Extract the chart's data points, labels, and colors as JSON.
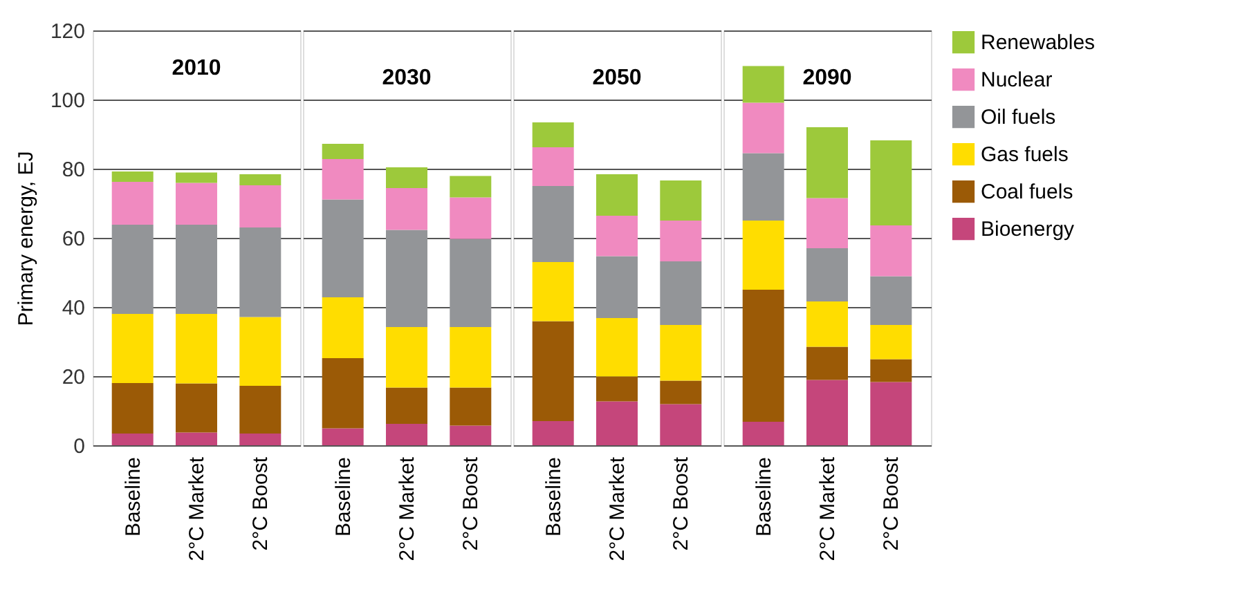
{
  "chart_data": [
    {
      "type": "bar",
      "stacked": true,
      "title": "2010",
      "ylabel": "Primary energy, EJ",
      "categories": [
        "Baseline",
        "2°C Market",
        "2°C Boost"
      ],
      "ylim": [
        0,
        120
      ],
      "yticks": [
        0,
        20,
        40,
        60,
        80,
        100,
        120
      ],
      "grid": "y",
      "legend": "right",
      "series": [
        {
          "name": "Bioenergy",
          "color": "#c5467b",
          "values": [
            3.4,
            3.7,
            3.4
          ]
        },
        {
          "name": "Coal fuels",
          "color": "#9b5a06",
          "values": [
            14.6,
            14.2,
            13.8
          ]
        },
        {
          "name": "Gas fuels",
          "color": "#ffdd00",
          "values": [
            20,
            20.1,
            19.9
          ]
        },
        {
          "name": "Oil fuels",
          "color": "#939598",
          "values": [
            25.8,
            25.8,
            25.9
          ]
        },
        {
          "name": "Nuclear",
          "color": "#f08ac0",
          "values": [
            12.4,
            12.1,
            12.2
          ]
        },
        {
          "name": "Renewables",
          "color": "#9dc93b",
          "values": [
            3.0,
            3.0,
            3.2
          ]
        }
      ]
    },
    {
      "type": "bar",
      "stacked": true,
      "title": "2030",
      "categories": [
        "Baseline",
        "2°C Market",
        "2°C Boost"
      ],
      "ylim": [
        0,
        120
      ],
      "yticks": [
        0,
        20,
        40,
        60,
        80,
        100,
        120
      ],
      "grid": "y",
      "tick_labels": "x",
      "series": [
        {
          "color": "#c5467b",
          "values": [
            4.9,
            6.2,
            5.7
          ]
        },
        {
          "color": "#9b5a06",
          "values": [
            20.3,
            10.5,
            11
          ]
        },
        {
          "color": "#ffdd00",
          "values": [
            17.6,
            17.5,
            17.5
          ]
        },
        {
          "color": "#939598",
          "values": [
            28.3,
            28.1,
            25.5
          ]
        },
        {
          "color": "#f08ac0",
          "values": [
            11.7,
            12.1,
            12
          ]
        },
        {
          "color": "#9dc93b",
          "values": [
            4.4,
            6.0,
            6.2
          ]
        }
      ]
    },
    {
      "type": "bar",
      "stacked": true,
      "title": "2050",
      "categories": [
        "Baseline",
        "2°C Market",
        "2°C Boost"
      ],
      "ylim": [
        0,
        120
      ],
      "yticks": [
        0,
        20,
        40,
        60,
        80,
        100,
        120
      ],
      "grid": "y",
      "tick_labels": "x",
      "series": [
        {
          "color": "#c5467b",
          "values": [
            7,
            12.7,
            11.9
          ]
        },
        {
          "color": "#9b5a06",
          "values": [
            28.9,
            7.2,
            6.8
          ]
        },
        {
          "color": "#ffdd00",
          "values": [
            17.1,
            16.9,
            16.1
          ]
        },
        {
          "color": "#939598",
          "values": [
            22,
            17.9,
            18.4
          ]
        },
        {
          "color": "#f08ac0",
          "values": [
            11.2,
            11.7,
            11.8
          ]
        },
        {
          "color": "#9dc93b",
          "values": [
            7.2,
            12.0,
            11.6
          ]
        }
      ]
    },
    {
      "type": "bar",
      "stacked": true,
      "title": "2090",
      "categories": [
        "Baseline",
        "2°C Market",
        "2°C Boost"
      ],
      "ylim": [
        0,
        120
      ],
      "yticks": [
        0,
        20,
        40,
        60,
        80,
        100,
        120
      ],
      "grid": "y",
      "tick_labels": "x",
      "series": [
        {
          "color": "#c5467b",
          "values": [
            6.8,
            18.9,
            18.3
          ]
        },
        {
          "color": "#9b5a06",
          "values": [
            38.2,
            9.6,
            6.6
          ]
        },
        {
          "color": "#ffdd00",
          "values": [
            20,
            13.1,
            9.9
          ]
        },
        {
          "color": "#939598",
          "values": [
            19.5,
            15.4,
            14.1
          ]
        },
        {
          "color": "#f08ac0",
          "values": [
            14.6,
            14.5,
            14.7
          ]
        },
        {
          "color": "#9dc93b",
          "values": [
            10.6,
            20.5,
            24.6
          ]
        }
      ]
    }
  ]
}
